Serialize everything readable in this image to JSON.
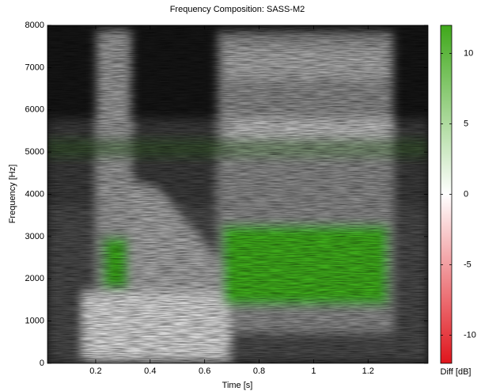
{
  "chart_data": {
    "type": "heatmap",
    "title": "Frequency Composition: SASS-M2",
    "xlabel": "Time [s]",
    "ylabel": "Frequency [Hz]",
    "xlim": [
      0.023,
      1.42
    ],
    "xticks": [
      0.2,
      0.4,
      0.6,
      0.8,
      1,
      1.2
    ],
    "ylim": [
      0,
      8000
    ],
    "yticks": [
      0,
      1000,
      2000,
      3000,
      4000,
      5000,
      6000,
      7000,
      8000
    ],
    "colorbar": {
      "label": "Diff [dB]",
      "lim": [
        -12,
        12
      ],
      "ticks": [
        -10,
        -5,
        0,
        5,
        10
      ],
      "colors": [
        "#e0151c",
        "#ffffff",
        "#3fa81a"
      ]
    }
  }
}
